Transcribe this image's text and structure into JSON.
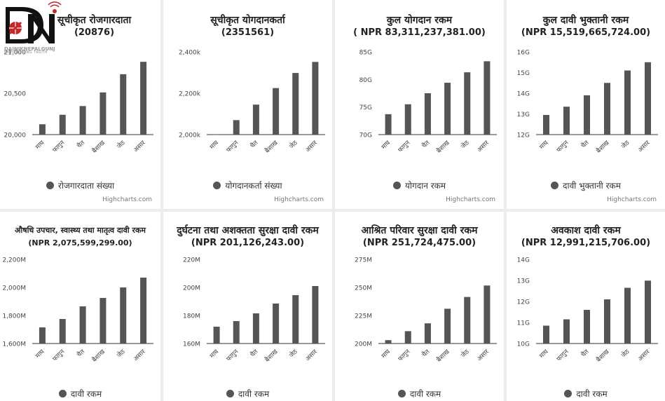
{
  "logo": {
    "brand": "DAINIKNEPALGUNJ",
    "tagline": "EMPOWERING TRUTH"
  },
  "credits": "Highcharts.com",
  "series_color": "#555555",
  "chart_data": [
    {
      "type": "bar",
      "title_line1": "सूचीकृत रोजगारदाता",
      "title_line2": "(20876)",
      "categories": [
        "माघ",
        "फागुन",
        "चैत",
        "बैशाख",
        "जेठ",
        "असार"
      ],
      "values": [
        20125,
        20240,
        20345,
        20510,
        20730,
        20880
      ],
      "ylim": [
        20000,
        21000
      ],
      "ticks": [
        20000,
        20500,
        21000
      ],
      "tick_labels": [
        "20,000",
        "20,500",
        "21,000"
      ],
      "legend": "रोजगारदाता संख्या",
      "credits": true
    },
    {
      "type": "bar",
      "title_line1": "सूचीकृत योगदानकर्ता",
      "title_line2": "(2351561)",
      "categories": [
        "माघ",
        "फागुन",
        "चैत",
        "बैशाख",
        "जेठ",
        "असार"
      ],
      "values": [
        2002000,
        2070000,
        2145000,
        2225000,
        2298000,
        2351561
      ],
      "ylim": [
        2000000,
        2400000
      ],
      "ticks": [
        2000000,
        2200000,
        2400000
      ],
      "tick_labels": [
        "2,000k",
        "2,200k",
        "2,400k"
      ],
      "legend": "योगदानकर्ता संख्या",
      "credits": true
    },
    {
      "type": "bar",
      "title_line1": "कुल योगदान रकम",
      "title_line2": "( NPR 83,311,237,381.00)",
      "categories": [
        "माघ",
        "फागुन",
        "चैत",
        "बैशाख",
        "जेठ",
        "असार"
      ],
      "values": [
        73.7,
        75.5,
        77.5,
        79.4,
        81.3,
        83.3
      ],
      "ylim": [
        70,
        85
      ],
      "ticks": [
        70,
        75,
        80,
        85
      ],
      "tick_labels": [
        "70G",
        "75G",
        "80G",
        "85G"
      ],
      "legend": "योगदान रकम",
      "credits": true
    },
    {
      "type": "bar",
      "title_line1": "कुल दावी भुक्तानी रकम",
      "title_line2": "(NPR 15,519,665,724.00)",
      "categories": [
        "माघ",
        "फागुन",
        "चैत",
        "बैशाख",
        "जेठ",
        "असार"
      ],
      "values": [
        12.95,
        13.35,
        13.9,
        14.5,
        15.1,
        15.5
      ],
      "ylim": [
        12,
        16
      ],
      "ticks": [
        12,
        13,
        14,
        15,
        16
      ],
      "tick_labels": [
        "12G",
        "13G",
        "14G",
        "15G",
        "16G"
      ],
      "legend": "दावी भुक्तानी रकम",
      "credits": true
    },
    {
      "type": "bar",
      "title_line1": "औषधि उपचार, स्वास्थ्य तथा मातृत्व दावी रकम",
      "title_line2": "(NPR 2,075,599,299.00)",
      "small_title": true,
      "categories": [
        "माघ",
        "फागुन",
        "चैत",
        "बैशाख",
        "जेठ",
        "असार"
      ],
      "values": [
        1715,
        1775,
        1865,
        1925,
        2000,
        2070
      ],
      "ylim": [
        1600,
        2200
      ],
      "ticks": [
        1600,
        1800,
        2000,
        2200
      ],
      "tick_labels": [
        "1,600M",
        "1,800M",
        "2,000M",
        "2,200M"
      ],
      "legend": "दावी रकम",
      "credits": false
    },
    {
      "type": "bar",
      "title_line1": "दुर्घटना तथा अशक्तता सुरक्षा दावी रकम",
      "title_line2": "(NPR 201,126,243.00)",
      "categories": [
        "माघ",
        "फागुन",
        "चैत",
        "बैशाख",
        "जेठ",
        "असार"
      ],
      "values": [
        172,
        176,
        181.5,
        188.5,
        194.5,
        201
      ],
      "ylim": [
        160,
        220
      ],
      "ticks": [
        160,
        180,
        200,
        220
      ],
      "tick_labels": [
        "160M",
        "180M",
        "200M",
        "220M"
      ],
      "legend": "दावी रकम",
      "credits": false
    },
    {
      "type": "bar",
      "title_line1": "आश्रित परिवार सुरक्षा दावी रकम",
      "title_line2": "(NPR 251,724,475.00)",
      "categories": [
        "माघ",
        "फागुन",
        "चैत",
        "बैशाख",
        "जेठ",
        "असार"
      ],
      "values": [
        203,
        211,
        218,
        231,
        241.5,
        251.7
      ],
      "ylim": [
        200,
        275
      ],
      "ticks": [
        200,
        225,
        250,
        275
      ],
      "tick_labels": [
        "200M",
        "225M",
        "250M",
        "275M"
      ],
      "legend": "दावी रकम",
      "credits": false
    },
    {
      "type": "bar",
      "title_line1": "अवकाश दावी रकम",
      "title_line2": "(NPR 12,991,215,706.00)",
      "categories": [
        "माघ",
        "फागुन",
        "चैत",
        "बैशाख",
        "जेठ",
        "असार"
      ],
      "values": [
        10.85,
        11.15,
        11.6,
        12.1,
        12.65,
        12.99
      ],
      "ylim": [
        10,
        14
      ],
      "ticks": [
        10,
        11,
        12,
        13,
        14
      ],
      "tick_labels": [
        "10G",
        "11G",
        "12G",
        "13G",
        "14G"
      ],
      "legend": "दावी रकम",
      "credits": false
    }
  ]
}
